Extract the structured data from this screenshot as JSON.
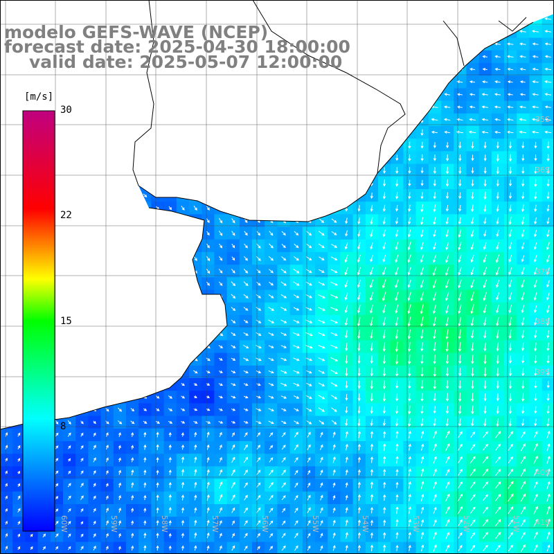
{
  "header": {
    "line1": "modelo GEFS-WAVE (NCEP)",
    "line2": "forecast date: 2025-04-30 18:00:00",
    "line3": "valid date: 2025-05-07 12:00:00"
  },
  "colorbar": {
    "unit": "[m/s]",
    "ticks": [
      "30",
      "22",
      "15",
      "8"
    ],
    "range": [
      0,
      30
    ],
    "colors": [
      "#0000ff",
      "#00ffff",
      "#00ff00",
      "#ffff00",
      "#ff0000",
      "#c00080"
    ]
  },
  "lat_labels": [
    "35S",
    "36S",
    "37S",
    "38S",
    "39S",
    "40S",
    "41S"
  ],
  "lon_labels": [
    "60W",
    "59W",
    "58W",
    "57W",
    "56W",
    "55W",
    "54W",
    "53W",
    "52W",
    "51W"
  ],
  "map": {
    "layer": "wind speed and direction",
    "land_color": "#ffffff",
    "grid": true
  }
}
